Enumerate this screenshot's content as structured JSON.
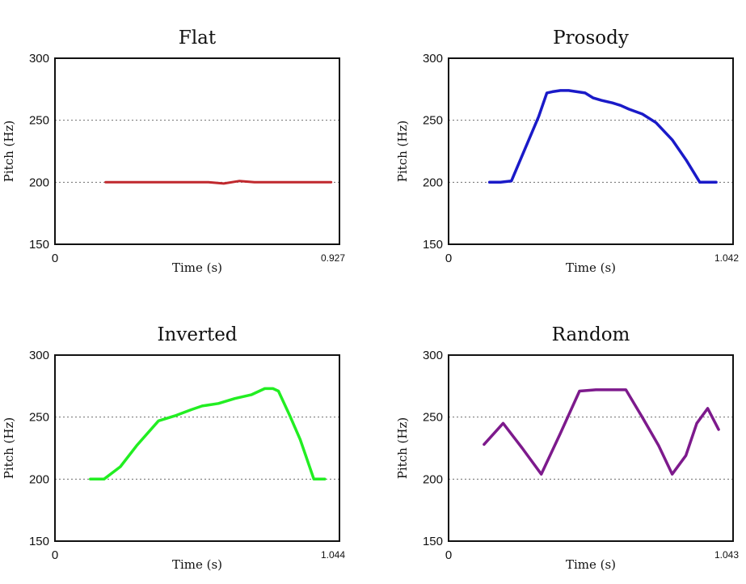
{
  "chart_data": [
    {
      "type": "line",
      "title": "Flat",
      "xlabel": "Time (s)",
      "ylabel": "Pitch (Hz)",
      "xlim": [
        0,
        0.927
      ],
      "ylim": [
        150,
        300
      ],
      "x_tick_labels": [
        "0",
        "0.927"
      ],
      "y_tick_labels": [
        "300",
        "250",
        "200",
        "150"
      ],
      "color": "#c0282d",
      "series": [
        {
          "x": [
            0.165,
            0.5,
            0.55,
            0.6,
            0.65,
            0.9
          ],
          "y": [
            200,
            200,
            199,
            201,
            200,
            200
          ]
        }
      ]
    },
    {
      "type": "line",
      "title": "Prosody",
      "xlabel": "Time (s)",
      "ylabel": "Pitch (Hz)",
      "xlim": [
        0,
        1.042
      ],
      "ylim": [
        150,
        300
      ],
      "x_tick_labels": [
        "0",
        "1.042"
      ],
      "y_tick_labels": [
        "300",
        "250",
        "200",
        "150"
      ],
      "color": "#1a1ac8",
      "series": [
        {
          "x": [
            0.15,
            0.19,
            0.23,
            0.33,
            0.36,
            0.38,
            0.41,
            0.44,
            0.5,
            0.53,
            0.56,
            0.6,
            0.63,
            0.66,
            0.71,
            0.76,
            0.82,
            0.87,
            0.92,
            0.98
          ],
          "y": [
            200,
            200,
            201,
            253,
            272,
            273,
            274,
            274,
            272,
            268,
            266,
            264,
            262,
            259,
            255,
            248,
            234,
            218,
            200,
            200
          ]
        }
      ]
    },
    {
      "type": "line",
      "title": "Inverted",
      "xlabel": "Time (s)",
      "ylabel": "Pitch (Hz)",
      "xlim": [
        0,
        1.044
      ],
      "ylim": [
        150,
        300
      ],
      "x_tick_labels": [
        "0",
        "1.044"
      ],
      "y_tick_labels": [
        "300",
        "250",
        "200",
        "150"
      ],
      "color": "#22ee22",
      "series": [
        {
          "x": [
            0.13,
            0.18,
            0.24,
            0.3,
            0.38,
            0.44,
            0.5,
            0.54,
            0.6,
            0.66,
            0.72,
            0.77,
            0.8,
            0.82,
            0.86,
            0.9,
            0.95,
            0.99
          ],
          "y": [
            200,
            200,
            210,
            227,
            247,
            251,
            256,
            259,
            261,
            265,
            268,
            273,
            273,
            271,
            252,
            232,
            200,
            200
          ]
        }
      ]
    },
    {
      "type": "line",
      "title": "Random",
      "xlabel": "Time (s)",
      "ylabel": "Pitch (Hz)",
      "xlim": [
        0,
        1.043
      ],
      "ylim": [
        150,
        300
      ],
      "x_tick_labels": [
        "0",
        "1.043"
      ],
      "y_tick_labels": [
        "300",
        "250",
        "200",
        "150"
      ],
      "color": "#7d1a8c",
      "series": [
        {
          "x": [
            0.13,
            0.2,
            0.27,
            0.34,
            0.41,
            0.48,
            0.54,
            0.59,
            0.65,
            0.71,
            0.77,
            0.82,
            0.87,
            0.91,
            0.95,
            0.99
          ],
          "y": [
            228,
            245,
            225,
            204,
            237,
            271,
            272,
            272,
            272,
            250,
            227,
            204,
            219,
            245,
            257,
            240
          ]
        }
      ]
    }
  ]
}
